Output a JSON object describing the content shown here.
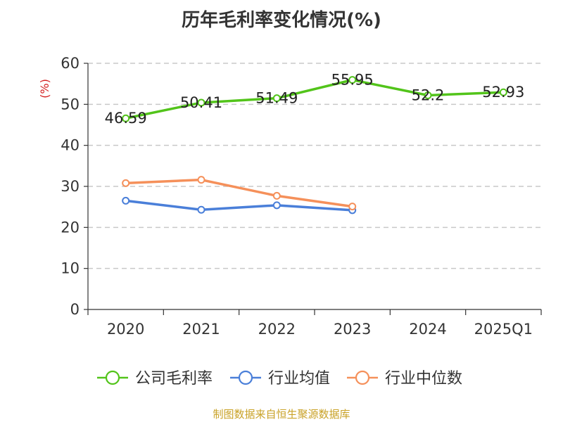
{
  "title": "历年毛利率变化情况(%)",
  "source": "制图数据来自恒生聚源数据库",
  "chart_data": {
    "type": "line",
    "title": "历年毛利率变化情况(%)",
    "ylabel": "(%)",
    "xlabel": "",
    "ylim": [
      0,
      60
    ],
    "yticks": [
      "0",
      "10",
      "20",
      "30",
      "40",
      "50",
      "60"
    ],
    "categories": [
      "2020",
      "2021",
      "2022",
      "2023",
      "2024",
      "2025Q1"
    ],
    "grid": "horizontal-dashed",
    "legend_position": "bottom",
    "series": [
      {
        "name": "公司毛利率",
        "color": "#52c41a",
        "values": [
          46.59,
          50.41,
          51.49,
          55.95,
          52.2,
          52.93
        ],
        "labels": [
          "46.59",
          "50.41",
          "51.49",
          "55.95",
          "52.2",
          "52.93"
        ]
      },
      {
        "name": "行业均值",
        "color": "#4a7fd9",
        "values": [
          26.5,
          24.3,
          25.4,
          24.2,
          null,
          null
        ]
      },
      {
        "name": "行业中位数",
        "color": "#f5905a",
        "values": [
          30.8,
          31.6,
          27.7,
          25.1,
          null,
          null
        ]
      }
    ]
  }
}
